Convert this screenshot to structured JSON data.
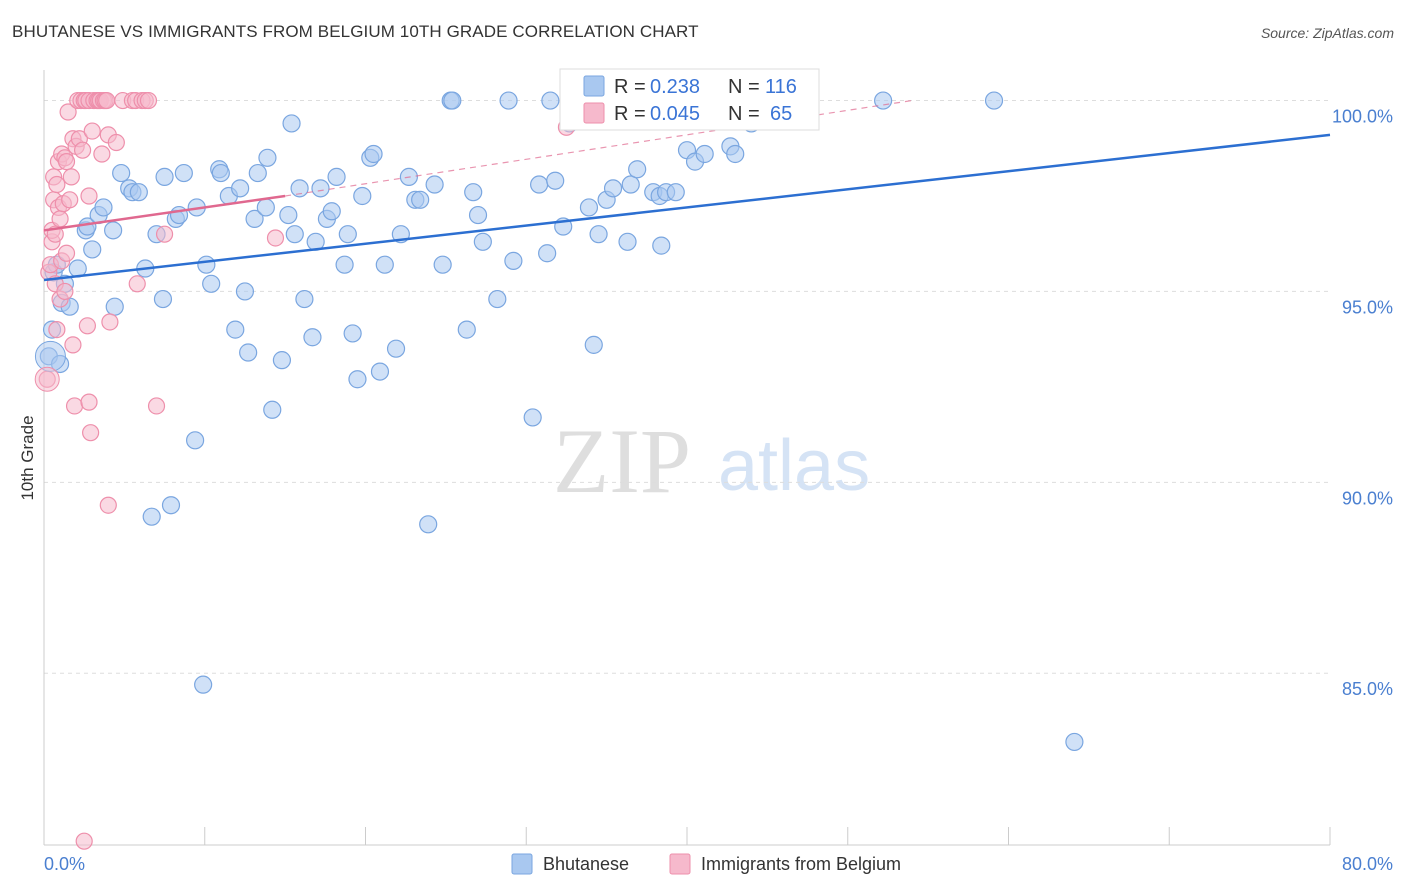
{
  "header": {
    "title": "BHUTANESE VS IMMIGRANTS FROM BELGIUM 10TH GRADE CORRELATION CHART",
    "source": "Source: ZipAtlas.com"
  },
  "watermark": {
    "zip": "ZIP",
    "atlas": "atlas"
  },
  "colors": {
    "blue_fill": "#a9c8f0",
    "blue_stroke": "#7aa6e0",
    "blue_line": "#2c6fd1",
    "pink_fill": "#f6b9cc",
    "pink_stroke": "#ee8fab",
    "pink_line": "#e0688f",
    "grid": "#dddddd",
    "axis": "#cccccc",
    "tick_text": "#4a7fd0"
  },
  "stats": {
    "r_label": "R =",
    "n_label": "N =",
    "bhutanese": {
      "r": "0.238",
      "n": "116"
    },
    "belgium": {
      "r": "0.045",
      "n": "65"
    }
  },
  "chart_data": {
    "type": "scatter",
    "title": "BHUTANESE VS IMMIGRANTS FROM BELGIUM 10TH GRADE CORRELATION CHART",
    "xlabel": "",
    "ylabel": "10th Grade",
    "xlim": [
      0,
      80
    ],
    "ylim": [
      80.5,
      100.8
    ],
    "x_tick_labels": [
      "0.0%",
      "80.0%"
    ],
    "y_ticks": [
      85,
      90,
      95,
      100
    ],
    "y_tick_labels": [
      "85.0%",
      "90.0%",
      "95.0%",
      "100.0%"
    ],
    "grid": true,
    "legend_position": "bottom",
    "series": [
      {
        "name": "Bhutanese",
        "color": "#a9c8f0",
        "trend": {
          "x": [
            0,
            80
          ],
          "y": [
            95.3,
            99.1
          ]
        },
        "points": [
          [
            0.3,
            93.3
          ],
          [
            0.5,
            94.0
          ],
          [
            0.6,
            95.5
          ],
          [
            0.8,
            95.7
          ],
          [
            1.0,
            93.1
          ],
          [
            1.1,
            94.7
          ],
          [
            1.3,
            95.2
          ],
          [
            1.6,
            94.6
          ],
          [
            2.1,
            95.6
          ],
          [
            2.6,
            96.6
          ],
          [
            2.7,
            96.7
          ],
          [
            3.0,
            96.1
          ],
          [
            3.4,
            97.0
          ],
          [
            3.7,
            97.2
          ],
          [
            4.3,
            96.6
          ],
          [
            4.4,
            94.6
          ],
          [
            4.8,
            98.1
          ],
          [
            5.3,
            97.7
          ],
          [
            5.5,
            97.6
          ],
          [
            5.9,
            97.6
          ],
          [
            6.3,
            95.6
          ],
          [
            6.7,
            89.1
          ],
          [
            7.0,
            96.5
          ],
          [
            7.4,
            94.8
          ],
          [
            7.5,
            98.0
          ],
          [
            7.9,
            89.4
          ],
          [
            8.2,
            96.9
          ],
          [
            8.4,
            97.0
          ],
          [
            8.7,
            98.1
          ],
          [
            9.4,
            91.1
          ],
          [
            9.5,
            97.2
          ],
          [
            9.9,
            84.7
          ],
          [
            10.1,
            95.7
          ],
          [
            10.4,
            95.2
          ],
          [
            10.9,
            98.2
          ],
          [
            11.0,
            98.1
          ],
          [
            11.5,
            97.5
          ],
          [
            11.9,
            94.0
          ],
          [
            12.2,
            97.7
          ],
          [
            12.5,
            95.0
          ],
          [
            12.7,
            93.4
          ],
          [
            13.1,
            96.9
          ],
          [
            13.3,
            98.1
          ],
          [
            13.8,
            97.2
          ],
          [
            13.9,
            98.5
          ],
          [
            14.2,
            91.9
          ],
          [
            14.8,
            93.2
          ],
          [
            15.2,
            97.0
          ],
          [
            15.4,
            99.4
          ],
          [
            15.6,
            96.5
          ],
          [
            15.9,
            97.7
          ],
          [
            16.2,
            94.8
          ],
          [
            16.7,
            93.8
          ],
          [
            16.9,
            96.3
          ],
          [
            17.2,
            97.7
          ],
          [
            17.6,
            96.9
          ],
          [
            17.9,
            97.1
          ],
          [
            18.2,
            98.0
          ],
          [
            18.7,
            95.7
          ],
          [
            18.9,
            96.5
          ],
          [
            19.2,
            93.9
          ],
          [
            19.5,
            92.7
          ],
          [
            19.8,
            97.5
          ],
          [
            20.3,
            98.5
          ],
          [
            20.5,
            98.6
          ],
          [
            20.9,
            92.9
          ],
          [
            21.2,
            95.7
          ],
          [
            21.9,
            93.5
          ],
          [
            22.2,
            96.5
          ],
          [
            22.7,
            98.0
          ],
          [
            23.1,
            97.4
          ],
          [
            23.4,
            97.4
          ],
          [
            23.9,
            88.9
          ],
          [
            24.3,
            97.8
          ],
          [
            24.8,
            95.7
          ],
          [
            25.3,
            100.0
          ],
          [
            25.4,
            100.0
          ],
          [
            26.3,
            94.0
          ],
          [
            26.7,
            97.6
          ],
          [
            27.0,
            97.0
          ],
          [
            27.3,
            96.3
          ],
          [
            28.2,
            94.8
          ],
          [
            28.9,
            100.0
          ],
          [
            29.2,
            95.8
          ],
          [
            30.4,
            91.7
          ],
          [
            30.8,
            97.8
          ],
          [
            31.3,
            96.0
          ],
          [
            31.5,
            100.0
          ],
          [
            31.8,
            97.9
          ],
          [
            32.3,
            96.7
          ],
          [
            32.7,
            99.4
          ],
          [
            33.9,
            97.2
          ],
          [
            34.2,
            93.6
          ],
          [
            34.5,
            96.5
          ],
          [
            35.0,
            97.4
          ],
          [
            35.4,
            97.7
          ],
          [
            36.3,
            96.3
          ],
          [
            36.5,
            97.8
          ],
          [
            36.9,
            98.2
          ],
          [
            37.9,
            97.6
          ],
          [
            38.3,
            97.5
          ],
          [
            38.4,
            96.2
          ],
          [
            38.7,
            97.6
          ],
          [
            39.3,
            97.6
          ],
          [
            40.0,
            98.7
          ],
          [
            40.5,
            98.4
          ],
          [
            41.1,
            98.6
          ],
          [
            42.7,
            98.8
          ],
          [
            42.8,
            100.0
          ],
          [
            43.0,
            98.6
          ],
          [
            44.0,
            99.4
          ],
          [
            44.3,
            100.0
          ],
          [
            52.2,
            100.0
          ],
          [
            59.1,
            100.0
          ],
          [
            64.1,
            83.2
          ]
        ]
      },
      {
        "name": "Immigrants from Belgium",
        "color": "#f6b9cc",
        "trend": {
          "x": [
            0,
            15
          ],
          "y": [
            96.6,
            97.5
          ]
        },
        "trend_dashed": {
          "x": [
            15,
            54
          ],
          "y": [
            97.5,
            100.0
          ]
        },
        "points": [
          [
            0.2,
            92.7
          ],
          [
            0.3,
            95.5
          ],
          [
            0.4,
            95.7
          ],
          [
            0.5,
            96.3
          ],
          [
            0.5,
            96.6
          ],
          [
            0.6,
            97.4
          ],
          [
            0.6,
            98.0
          ],
          [
            0.7,
            95.2
          ],
          [
            0.7,
            96.5
          ],
          [
            0.8,
            94.0
          ],
          [
            0.8,
            97.8
          ],
          [
            0.9,
            97.2
          ],
          [
            0.9,
            98.4
          ],
          [
            1.0,
            94.8
          ],
          [
            1.0,
            96.9
          ],
          [
            1.1,
            95.8
          ],
          [
            1.1,
            98.6
          ],
          [
            1.2,
            97.3
          ],
          [
            1.3,
            95.0
          ],
          [
            1.3,
            98.5
          ],
          [
            1.4,
            96.0
          ],
          [
            1.4,
            98.4
          ],
          [
            1.5,
            99.7
          ],
          [
            1.6,
            97.4
          ],
          [
            1.7,
            98.0
          ],
          [
            1.8,
            93.6
          ],
          [
            1.8,
            99.0
          ],
          [
            1.9,
            92.0
          ],
          [
            2.0,
            98.8
          ],
          [
            2.1,
            100.0
          ],
          [
            2.2,
            99.0
          ],
          [
            2.3,
            100.0
          ],
          [
            2.4,
            98.7
          ],
          [
            2.5,
            100.0
          ],
          [
            2.6,
            100.0
          ],
          [
            2.7,
            94.1
          ],
          [
            2.8,
            92.1
          ],
          [
            2.8,
            97.5
          ],
          [
            2.8,
            100.0
          ],
          [
            2.9,
            91.3
          ],
          [
            3.0,
            99.2
          ],
          [
            3.1,
            100.0
          ],
          [
            3.3,
            100.0
          ],
          [
            3.4,
            100.0
          ],
          [
            3.5,
            100.0
          ],
          [
            3.6,
            98.6
          ],
          [
            3.7,
            100.0
          ],
          [
            3.8,
            100.0
          ],
          [
            3.9,
            100.0
          ],
          [
            4.0,
            99.1
          ],
          [
            4.0,
            89.4
          ],
          [
            4.1,
            94.2
          ],
          [
            4.5,
            98.9
          ],
          [
            4.9,
            100.0
          ],
          [
            5.5,
            100.0
          ],
          [
            5.7,
            100.0
          ],
          [
            5.8,
            95.2
          ],
          [
            6.1,
            100.0
          ],
          [
            6.3,
            100.0
          ],
          [
            6.5,
            100.0
          ],
          [
            7.0,
            92.0
          ],
          [
            7.5,
            96.5
          ],
          [
            14.4,
            96.4
          ],
          [
            2.5,
            80.6
          ],
          [
            32.5,
            99.3
          ]
        ]
      }
    ]
  }
}
